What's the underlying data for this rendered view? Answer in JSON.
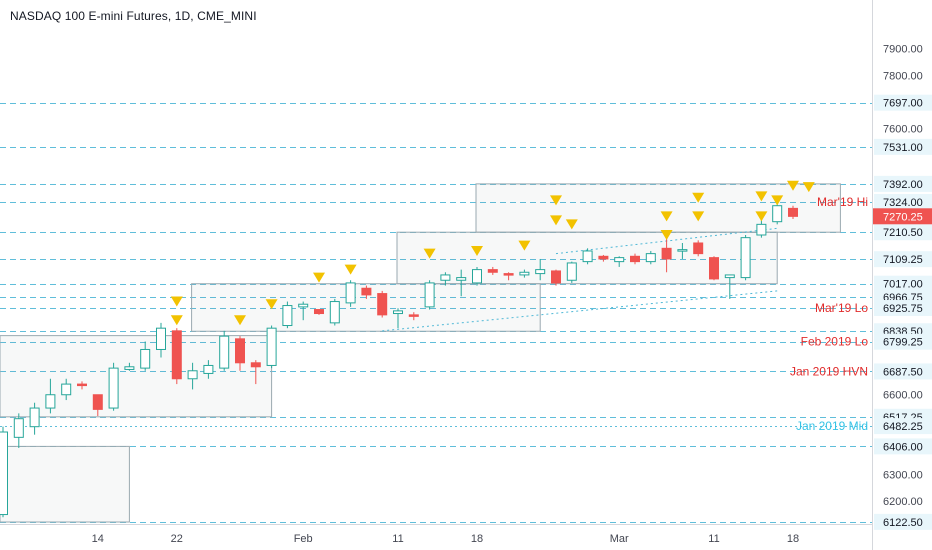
{
  "chart_title": "NASDAQ 100 E-mini Futures, 1D, CME_MINI",
  "colors": {
    "up": "#26a69a",
    "down": "#ef5350",
    "level": "#4fb8d6",
    "box": "#9aa9b0",
    "triangle": "#f2c200",
    "hvn": "#e02c2c",
    "mid": "#35c3e6",
    "axis_text": "#434651",
    "label_bg": "#e8f6fb"
  },
  "chart_data": {
    "type": "candlestick",
    "title": "NASDAQ 100 E-mini Futures, 1D, CME_MINI",
    "ylim": [
      6122,
      7985
    ],
    "y_ticks": [
      "7900.00",
      "7800.00",
      "7600.00",
      "6600.00",
      "6300.00",
      "6200.00"
    ],
    "x_ticks": [
      {
        "label": "14",
        "index": 6
      },
      {
        "label": "22",
        "index": 11
      },
      {
        "label": "Feb",
        "index": 19
      },
      {
        "label": "11",
        "index": 25
      },
      {
        "label": "18",
        "index": 30
      },
      {
        "label": "Mar",
        "index": 39
      },
      {
        "label": "11",
        "index": 45
      },
      {
        "label": "18",
        "index": 50
      }
    ],
    "candles": [
      {
        "o": 6150,
        "h": 6480,
        "l": 6140,
        "c": 6460
      },
      {
        "o": 6440,
        "h": 6530,
        "l": 6400,
        "c": 6510
      },
      {
        "o": 6480,
        "h": 6570,
        "l": 6450,
        "c": 6550
      },
      {
        "o": 6550,
        "h": 6660,
        "l": 6530,
        "c": 6600
      },
      {
        "o": 6600,
        "h": 6660,
        "l": 6580,
        "c": 6640
      },
      {
        "o": 6640,
        "h": 6650,
        "l": 6620,
        "c": 6636
      },
      {
        "o": 6600,
        "h": 6600,
        "l": 6520,
        "c": 6545
      },
      {
        "o": 6550,
        "h": 6720,
        "l": 6540,
        "c": 6700
      },
      {
        "o": 6695,
        "h": 6720,
        "l": 6690,
        "c": 6705
      },
      {
        "o": 6700,
        "h": 6800,
        "l": 6690,
        "c": 6770
      },
      {
        "o": 6770,
        "h": 6870,
        "l": 6740,
        "c": 6850
      },
      {
        "o": 6840,
        "h": 6850,
        "l": 6640,
        "c": 6660
      },
      {
        "o": 6660,
        "h": 6720,
        "l": 6620,
        "c": 6690
      },
      {
        "o": 6680,
        "h": 6730,
        "l": 6660,
        "c": 6710
      },
      {
        "o": 6700,
        "h": 6840,
        "l": 6690,
        "c": 6820
      },
      {
        "o": 6810,
        "h": 6820,
        "l": 6690,
        "c": 6720
      },
      {
        "o": 6720,
        "h": 6730,
        "l": 6640,
        "c": 6705
      },
      {
        "o": 6710,
        "h": 6860,
        "l": 6700,
        "c": 6850
      },
      {
        "o": 6860,
        "h": 6950,
        "l": 6850,
        "c": 6935
      },
      {
        "o": 6930,
        "h": 6950,
        "l": 6880,
        "c": 6940
      },
      {
        "o": 6920,
        "h": 6910,
        "l": 6900,
        "c": 6905
      },
      {
        "o": 6870,
        "h": 6960,
        "l": 6860,
        "c": 6950
      },
      {
        "o": 6945,
        "h": 7030,
        "l": 6930,
        "c": 7020
      },
      {
        "o": 7000,
        "h": 7010,
        "l": 6960,
        "c": 6975
      },
      {
        "o": 6980,
        "h": 6990,
        "l": 6890,
        "c": 6900
      },
      {
        "o": 6905,
        "h": 6925,
        "l": 6850,
        "c": 6915
      },
      {
        "o": 6900,
        "h": 6910,
        "l": 6880,
        "c": 6895
      },
      {
        "o": 6930,
        "h": 7030,
        "l": 6920,
        "c": 7020
      },
      {
        "o": 7030,
        "h": 7060,
        "l": 7010,
        "c": 7050
      },
      {
        "o": 7030,
        "h": 7070,
        "l": 6970,
        "c": 7040
      },
      {
        "o": 7020,
        "h": 7080,
        "l": 7010,
        "c": 7070
      },
      {
        "o": 7070,
        "h": 7080,
        "l": 7050,
        "c": 7060
      },
      {
        "o": 7055,
        "h": 7060,
        "l": 7030,
        "c": 7050
      },
      {
        "o": 7050,
        "h": 7070,
        "l": 7040,
        "c": 7060
      },
      {
        "o": 7055,
        "h": 7110,
        "l": 7030,
        "c": 7070
      },
      {
        "o": 7065,
        "h": 7070,
        "l": 7010,
        "c": 7020
      },
      {
        "o": 7030,
        "h": 7100,
        "l": 7020,
        "c": 7095
      },
      {
        "o": 7100,
        "h": 7150,
        "l": 7090,
        "c": 7140
      },
      {
        "o": 7120,
        "h": 7125,
        "l": 7100,
        "c": 7110
      },
      {
        "o": 7100,
        "h": 7120,
        "l": 7080,
        "c": 7115
      },
      {
        "o": 7120,
        "h": 7130,
        "l": 7090,
        "c": 7100
      },
      {
        "o": 7100,
        "h": 7140,
        "l": 7090,
        "c": 7130
      },
      {
        "o": 7150,
        "h": 7200,
        "l": 7060,
        "c": 7110
      },
      {
        "o": 7140,
        "h": 7170,
        "l": 7110,
        "c": 7145
      },
      {
        "o": 7170,
        "h": 7180,
        "l": 7120,
        "c": 7130
      },
      {
        "o": 7115,
        "h": 7120,
        "l": 7030,
        "c": 7035
      },
      {
        "o": 7040,
        "h": 7040,
        "l": 6960,
        "c": 7050
      },
      {
        "o": 7040,
        "h": 7200,
        "l": 7030,
        "c": 7190
      },
      {
        "o": 7200,
        "h": 7260,
        "l": 7190,
        "c": 7240
      },
      {
        "o": 7250,
        "h": 7330,
        "l": 7240,
        "c": 7310
      },
      {
        "o": 7300,
        "h": 7310,
        "l": 7260,
        "c": 7270
      }
    ],
    "levels": [
      {
        "value": 7697.0,
        "label": "7697.00",
        "style": "dash"
      },
      {
        "value": 7531.0,
        "label": "7531.00",
        "style": "dash"
      },
      {
        "value": 7392.0,
        "label": "7392.00",
        "style": "dash"
      },
      {
        "value": 7324.0,
        "label": "7324.00",
        "style": "dash",
        "name": "Mar'19 Hi",
        "name_color": "#e02c2c"
      },
      {
        "value": 7210.5,
        "label": "7210.50",
        "style": "dash"
      },
      {
        "value": 7109.25,
        "label": "7109.25",
        "style": "dash"
      },
      {
        "value": 7017.0,
        "label": "7017.00",
        "style": "dash"
      },
      {
        "value": 6966.75,
        "label": "6966.75",
        "style": "dash"
      },
      {
        "value": 6925.75,
        "label": "6925.75",
        "style": "dash",
        "name": "Mar'19 Lo",
        "name_color": "#e02c2c"
      },
      {
        "value": 6838.5,
        "label": "6838.50",
        "style": "dash"
      },
      {
        "value": 6799.25,
        "label": "6799.25",
        "style": "dash",
        "name": "Feb 2019 Lo",
        "name_color": "#e02c2c"
      },
      {
        "value": 6687.5,
        "label": "6687.50",
        "style": "dash",
        "name": "Jan 2019 HVN",
        "name_color": "#e02c2c"
      },
      {
        "value": 6517.25,
        "label": "6517.25",
        "style": "dash"
      },
      {
        "value": 6482.25,
        "label": "6482.25",
        "style": "dot",
        "name": "Jan 2019 Mid",
        "name_color": "#35c3e6"
      },
      {
        "value": 6406.0,
        "label": "6406.00",
        "style": "dash"
      },
      {
        "value": 6122.5,
        "label": "6122.50",
        "style": "dash"
      }
    ],
    "last_price": {
      "value": 7270.25,
      "label": "7270.25"
    },
    "boxes": [
      {
        "i0": -1,
        "i1": 8,
        "top": 6406,
        "bottom": 6122
      },
      {
        "i0": -1,
        "i1": 17,
        "top": 6822,
        "bottom": 6517
      },
      {
        "i0": 12,
        "i1": 34,
        "top": 7017,
        "bottom": 6838.5
      },
      {
        "i0": 25,
        "i1": 49,
        "top": 7210.5,
        "bottom": 7017
      },
      {
        "i0": 30,
        "i1": 53,
        "top": 7392,
        "bottom": 7210.5
      }
    ],
    "trendlines": [
      {
        "i0": 24,
        "v0": 6840,
        "i1": 49,
        "v1": 6990
      },
      {
        "i0": 35,
        "v0": 7130,
        "i1": 49,
        "v1": 7225
      }
    ],
    "markers": [
      {
        "i": 11,
        "v": 6950
      },
      {
        "i": 11,
        "v": 6880
      },
      {
        "i": 15,
        "v": 6880
      },
      {
        "i": 17,
        "v": 6940
      },
      {
        "i": 20,
        "v": 7040
      },
      {
        "i": 22,
        "v": 7070
      },
      {
        "i": 27,
        "v": 7130
      },
      {
        "i": 30,
        "v": 7140
      },
      {
        "i": 33,
        "v": 7160
      },
      {
        "i": 35,
        "v": 7330
      },
      {
        "i": 35,
        "v": 7255
      },
      {
        "i": 36,
        "v": 7240
      },
      {
        "i": 42,
        "v": 7270
      },
      {
        "i": 42,
        "v": 7200
      },
      {
        "i": 44,
        "v": 7340
      },
      {
        "i": 44,
        "v": 7270
      },
      {
        "i": 48,
        "v": 7345
      },
      {
        "i": 48,
        "v": 7270
      },
      {
        "i": 49,
        "v": 7330
      },
      {
        "i": 50,
        "v": 7385
      },
      {
        "i": 51,
        "v": 7380
      }
    ]
  }
}
